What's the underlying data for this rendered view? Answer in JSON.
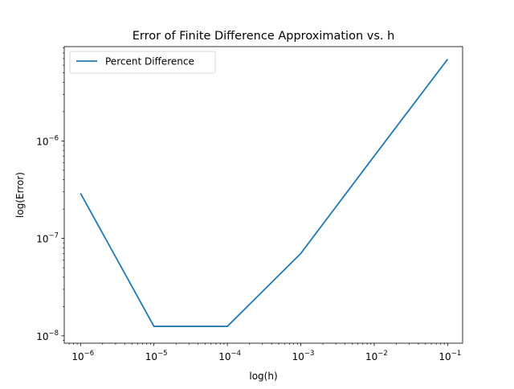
{
  "chart_data": {
    "type": "line",
    "title": "Error of Finite Difference Approximation vs. h",
    "xlabel": "log(h)",
    "ylabel": "log(Error)",
    "xscale": "log",
    "yscale": "log",
    "xlim": [
      6e-07,
      0.16
    ],
    "ylim": [
      8.4e-09,
      9.3e-06
    ],
    "grid": false,
    "legend_position": "top-left",
    "x_ticks": [
      {
        "value": 1e-06,
        "base": "10",
        "exp": "−6"
      },
      {
        "value": 1e-05,
        "base": "10",
        "exp": "−5"
      },
      {
        "value": 0.0001,
        "base": "10",
        "exp": "−4"
      },
      {
        "value": 0.001,
        "base": "10",
        "exp": "−3"
      },
      {
        "value": 0.01,
        "base": "10",
        "exp": "−2"
      },
      {
        "value": 0.1,
        "base": "10",
        "exp": "−1"
      }
    ],
    "y_ticks": [
      {
        "value": 1e-08,
        "base": "10",
        "exp": "−8"
      },
      {
        "value": 1e-07,
        "base": "10",
        "exp": "−7"
      },
      {
        "value": 1e-06,
        "base": "10",
        "exp": "−6"
      }
    ],
    "series": [
      {
        "name": "Percent Difference",
        "color": "#1f77b4",
        "x": [
          1e-06,
          1e-05,
          0.0001,
          0.001,
          0.01,
          0.1
        ],
        "y": [
          2.9e-07,
          1.25e-08,
          1.25e-08,
          7e-08,
          7e-07,
          6.9e-06
        ]
      }
    ]
  }
}
